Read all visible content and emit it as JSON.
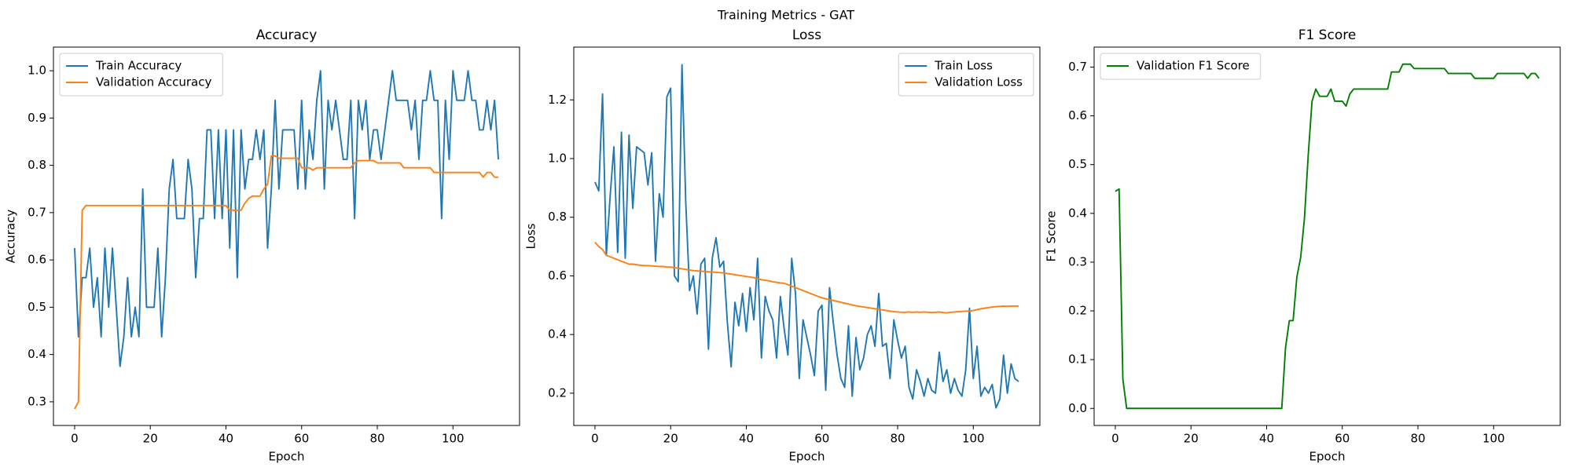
{
  "title": "Training Metrics - GAT",
  "chart_data": [
    {
      "type": "line",
      "title": "Accuracy",
      "x_label": "Epoch",
      "y_label": "Accuracy",
      "legend": "upper left",
      "xlim": [
        -5.6,
        117.6
      ],
      "xticks": [
        0,
        20,
        40,
        60,
        80,
        100
      ],
      "ylim": [
        0.25,
        1.05
      ],
      "yticks": [
        0.3,
        0.4,
        0.5,
        0.6,
        0.7,
        0.8,
        0.9,
        {
          "value": 1,
          "label": "1.0"
        }
      ],
      "x": [
        0,
        1,
        2,
        3,
        4,
        5,
        6,
        7,
        8,
        9,
        10,
        11,
        12,
        13,
        14,
        15,
        16,
        17,
        18,
        19,
        20,
        21,
        22,
        23,
        24,
        25,
        26,
        27,
        28,
        29,
        30,
        31,
        32,
        33,
        34,
        35,
        36,
        37,
        38,
        39,
        40,
        41,
        42,
        43,
        44,
        45,
        46,
        47,
        48,
        49,
        50,
        51,
        52,
        53,
        54,
        55,
        56,
        57,
        58,
        59,
        60,
        61,
        62,
        63,
        64,
        65,
        66,
        67,
        68,
        69,
        70,
        71,
        72,
        73,
        74,
        75,
        76,
        77,
        78,
        79,
        80,
        81,
        82,
        83,
        84,
        85,
        86,
        87,
        88,
        89,
        90,
        91,
        92,
        93,
        94,
        95,
        96,
        97,
        98,
        99,
        100,
        101,
        102,
        103,
        104,
        105,
        106,
        107,
        108,
        109,
        110,
        111,
        112
      ],
      "series": [
        {
          "name": "Train Accuracy",
          "color": "#1f77b4",
          "values": [
            0.625,
            0.4375,
            0.5625,
            0.5625,
            0.625,
            0.5,
            0.5625,
            0.4375,
            0.625,
            0.5,
            0.625,
            0.5,
            0.375,
            0.4375,
            0.5625,
            0.4375,
            0.5,
            0.4375,
            0.75,
            0.5,
            0.5,
            0.5,
            0.625,
            0.4375,
            0.5625,
            0.75,
            0.8125,
            0.6875,
            0.6875,
            0.6875,
            0.8125,
            0.75,
            0.5625,
            0.6875,
            0.6875,
            0.875,
            0.875,
            0.6875,
            0.875,
            0.6875,
            0.875,
            0.625,
            0.875,
            0.5625,
            0.875,
            0.75,
            0.8125,
            0.8125,
            0.875,
            0.8125,
            0.875,
            0.625,
            0.75,
            0.9375,
            0.75,
            0.875,
            0.875,
            0.875,
            0.875,
            0.75,
            0.9375,
            0.75,
            0.875,
            0.8125,
            0.9375,
            1.0,
            0.75,
            0.9375,
            0.875,
            0.9375,
            0.875,
            0.8125,
            0.8125,
            0.9375,
            0.6875,
            0.9375,
            0.875,
            0.9375,
            0.8125,
            0.875,
            0.875,
            0.8125,
            0.875,
            0.9375,
            1.0,
            0.9375,
            0.9375,
            0.9375,
            0.9375,
            0.875,
            0.9375,
            0.8125,
            0.9375,
            0.9375,
            1.0,
            0.9375,
            0.9375,
            0.6875,
            0.9375,
            0.8125,
            1.0,
            0.9375,
            0.9375,
            0.9375,
            1.0,
            0.9375,
            0.9375,
            0.875,
            0.875,
            0.9375,
            0.875,
            0.9375,
            0.8125
          ]
        },
        {
          "name": "Validation Accuracy",
          "color": "#ff7f0e",
          "values": [
            0.285,
            0.3,
            0.705,
            0.715,
            0.715,
            0.715,
            0.715,
            0.715,
            0.715,
            0.715,
            0.715,
            0.715,
            0.715,
            0.715,
            0.715,
            0.715,
            0.715,
            0.715,
            0.715,
            0.715,
            0.715,
            0.715,
            0.715,
            0.715,
            0.715,
            0.715,
            0.715,
            0.715,
            0.715,
            0.715,
            0.715,
            0.715,
            0.715,
            0.715,
            0.715,
            0.715,
            0.715,
            0.715,
            0.715,
            0.715,
            0.715,
            0.705,
            0.705,
            0.705,
            0.705,
            0.72,
            0.73,
            0.735,
            0.735,
            0.735,
            0.75,
            0.76,
            0.82,
            0.82,
            0.815,
            0.815,
            0.815,
            0.815,
            0.815,
            0.815,
            0.795,
            0.795,
            0.795,
            0.79,
            0.795,
            0.795,
            0.795,
            0.795,
            0.795,
            0.795,
            0.795,
            0.795,
            0.795,
            0.795,
            0.805,
            0.81,
            0.81,
            0.81,
            0.81,
            0.81,
            0.805,
            0.805,
            0.805,
            0.805,
            0.805,
            0.805,
            0.805,
            0.795,
            0.795,
            0.795,
            0.795,
            0.795,
            0.795,
            0.795,
            0.795,
            0.785,
            0.785,
            0.785,
            0.785,
            0.785,
            0.785,
            0.785,
            0.785,
            0.785,
            0.785,
            0.785,
            0.785,
            0.785,
            0.775,
            0.785,
            0.785,
            0.775,
            0.775
          ]
        }
      ]
    },
    {
      "type": "line",
      "title": "Loss",
      "x_label": "Epoch",
      "y_label": "Loss",
      "legend": "upper right",
      "xlim": [
        -5.6,
        117.6
      ],
      "xticks": [
        0,
        20,
        40,
        60,
        80,
        100
      ],
      "ylim": [
        0.09,
        1.38
      ],
      "yticks": [
        0.2,
        0.4,
        0.6,
        0.8,
        {
          "value": 1,
          "label": "1.0"
        },
        1.2
      ],
      "x": [
        0,
        1,
        2,
        3,
        4,
        5,
        6,
        7,
        8,
        9,
        10,
        11,
        12,
        13,
        14,
        15,
        16,
        17,
        18,
        19,
        20,
        21,
        22,
        23,
        24,
        25,
        26,
        27,
        28,
        29,
        30,
        31,
        32,
        33,
        34,
        35,
        36,
        37,
        38,
        39,
        40,
        41,
        42,
        43,
        44,
        45,
        46,
        47,
        48,
        49,
        50,
        51,
        52,
        53,
        54,
        55,
        56,
        57,
        58,
        59,
        60,
        61,
        62,
        63,
        64,
        65,
        66,
        67,
        68,
        69,
        70,
        71,
        72,
        73,
        74,
        75,
        76,
        77,
        78,
        79,
        80,
        81,
        82,
        83,
        84,
        85,
        86,
        87,
        88,
        89,
        90,
        91,
        92,
        93,
        94,
        95,
        96,
        97,
        98,
        99,
        100,
        101,
        102,
        103,
        104,
        105,
        106,
        107,
        108,
        109,
        110,
        111,
        112
      ],
      "series": [
        {
          "name": "Train Loss",
          "color": "#1f77b4",
          "values": [
            0.92,
            0.89,
            1.22,
            0.67,
            0.87,
            1.04,
            0.68,
            1.09,
            0.66,
            1.08,
            0.83,
            1.04,
            1.03,
            1.02,
            0.91,
            1.02,
            0.65,
            0.88,
            0.8,
            1.21,
            1.24,
            0.6,
            0.58,
            1.32,
            0.85,
            0.55,
            0.6,
            0.47,
            0.64,
            0.66,
            0.35,
            0.66,
            0.73,
            0.63,
            0.65,
            0.44,
            0.29,
            0.51,
            0.43,
            0.54,
            0.41,
            0.56,
            0.45,
            0.66,
            0.32,
            0.53,
            0.48,
            0.45,
            0.32,
            0.53,
            0.42,
            0.33,
            0.66,
            0.54,
            0.25,
            0.45,
            0.39,
            0.33,
            0.26,
            0.48,
            0.5,
            0.21,
            0.56,
            0.44,
            0.33,
            0.25,
            0.22,
            0.43,
            0.19,
            0.39,
            0.28,
            0.32,
            0.4,
            0.43,
            0.36,
            0.54,
            0.36,
            0.37,
            0.25,
            0.45,
            0.38,
            0.32,
            0.36,
            0.22,
            0.18,
            0.28,
            0.24,
            0.19,
            0.25,
            0.21,
            0.2,
            0.34,
            0.24,
            0.28,
            0.2,
            0.25,
            0.21,
            0.19,
            0.28,
            0.49,
            0.25,
            0.36,
            0.19,
            0.22,
            0.2,
            0.23,
            0.15,
            0.18,
            0.33,
            0.2,
            0.3,
            0.25,
            0.24
          ]
        },
        {
          "name": "Validation Loss",
          "color": "#ff7f0e",
          "values": [
            0.715,
            0.7,
            0.69,
            0.67,
            0.665,
            0.66,
            0.655,
            0.65,
            0.645,
            0.64,
            0.64,
            0.638,
            0.636,
            0.635,
            0.635,
            0.634,
            0.633,
            0.632,
            0.632,
            0.63,
            0.63,
            0.628,
            0.626,
            0.624,
            0.622,
            0.62,
            0.618,
            0.617,
            0.616,
            0.615,
            0.614,
            0.613,
            0.612,
            0.611,
            0.61,
            0.608,
            0.606,
            0.604,
            0.602,
            0.6,
            0.598,
            0.596,
            0.594,
            0.59,
            0.587,
            0.585,
            0.583,
            0.58,
            0.578,
            0.576,
            0.575,
            0.57,
            0.565,
            0.56,
            0.555,
            0.55,
            0.545,
            0.54,
            0.535,
            0.53,
            0.525,
            0.522,
            0.519,
            0.516,
            0.513,
            0.51,
            0.507,
            0.504,
            0.501,
            0.498,
            0.496,
            0.494,
            0.492,
            0.49,
            0.488,
            0.486,
            0.484,
            0.482,
            0.48,
            0.478,
            0.477,
            0.476,
            0.476,
            0.477,
            0.476,
            0.477,
            0.476,
            0.477,
            0.476,
            0.475,
            0.476,
            0.477,
            0.475,
            0.474,
            0.476,
            0.477,
            0.478,
            0.479,
            0.48,
            0.48,
            0.482,
            0.485,
            0.488,
            0.49,
            0.492,
            0.494,
            0.495,
            0.496,
            0.497,
            0.496,
            0.497,
            0.497,
            0.497
          ]
        }
      ]
    },
    {
      "type": "line",
      "title": "F1 Score",
      "x_label": "Epoch",
      "y_label": "F1 Score",
      "legend": "upper left",
      "xlim": [
        -5.6,
        117.6
      ],
      "xticks": [
        0,
        20,
        40,
        60,
        80,
        100
      ],
      "ylim": [
        -0.035,
        0.741
      ],
      "yticks": [
        {
          "value": 0,
          "label": "0.0"
        },
        0.1,
        0.2,
        0.3,
        0.4,
        0.5,
        0.6,
        0.7
      ],
      "x": [
        0,
        1,
        2,
        3,
        4,
        5,
        6,
        7,
        8,
        9,
        10,
        11,
        12,
        13,
        14,
        15,
        16,
        17,
        18,
        19,
        20,
        21,
        22,
        23,
        24,
        25,
        26,
        27,
        28,
        29,
        30,
        31,
        32,
        33,
        34,
        35,
        36,
        37,
        38,
        39,
        40,
        41,
        42,
        43,
        44,
        45,
        46,
        47,
        48,
        49,
        50,
        51,
        52,
        53,
        54,
        55,
        56,
        57,
        58,
        59,
        60,
        61,
        62,
        63,
        64,
        65,
        66,
        67,
        68,
        69,
        70,
        71,
        72,
        73,
        74,
        75,
        76,
        77,
        78,
        79,
        80,
        81,
        82,
        83,
        84,
        85,
        86,
        87,
        88,
        89,
        90,
        91,
        92,
        93,
        94,
        95,
        96,
        97,
        98,
        99,
        100,
        101,
        102,
        103,
        104,
        105,
        106,
        107,
        108,
        109,
        110,
        111,
        112
      ],
      "series": [
        {
          "name": "Validation F1 Score",
          "color": "#008000",
          "values": [
            0.445,
            0.45,
            0.06,
            0,
            0,
            0,
            0,
            0,
            0,
            0,
            0,
            0,
            0,
            0,
            0,
            0,
            0,
            0,
            0,
            0,
            0,
            0,
            0,
            0,
            0,
            0,
            0,
            0,
            0,
            0,
            0,
            0,
            0,
            0,
            0,
            0,
            0,
            0,
            0,
            0,
            0,
            0,
            0,
            0,
            0,
            0.125,
            0.18,
            0.18,
            0.27,
            0.31,
            0.39,
            0.52,
            0.63,
            0.655,
            0.64,
            0.64,
            0.64,
            0.655,
            0.63,
            0.63,
            0.63,
            0.62,
            0.645,
            0.655,
            0.655,
            0.655,
            0.655,
            0.655,
            0.655,
            0.655,
            0.655,
            0.655,
            0.655,
            0.69,
            0.69,
            0.69,
            0.706,
            0.706,
            0.706,
            0.697,
            0.697,
            0.697,
            0.697,
            0.697,
            0.697,
            0.697,
            0.697,
            0.697,
            0.687,
            0.687,
            0.687,
            0.687,
            0.687,
            0.687,
            0.687,
            0.677,
            0.677,
            0.677,
            0.677,
            0.677,
            0.677,
            0.687,
            0.687,
            0.687,
            0.687,
            0.687,
            0.687,
            0.687,
            0.687,
            0.677,
            0.687,
            0.687,
            0.677
          ]
        }
      ]
    }
  ]
}
